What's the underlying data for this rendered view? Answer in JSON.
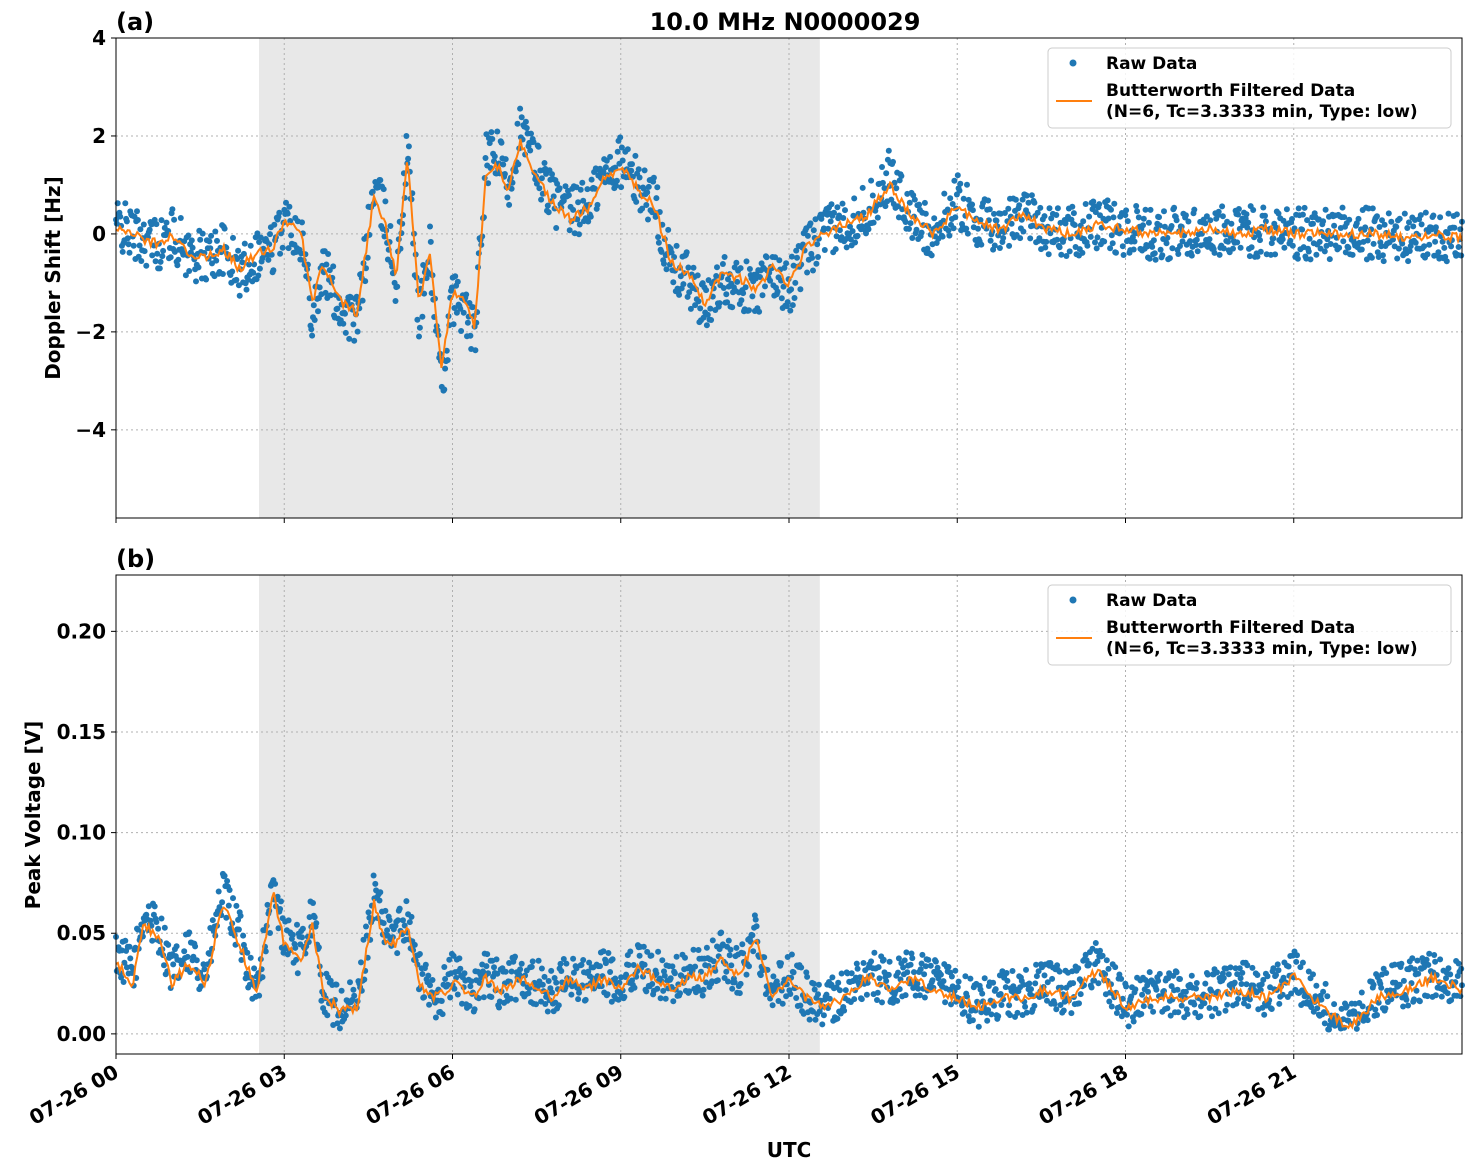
{
  "chart_data": [
    {
      "type": "scatter",
      "panel_label": "(a)",
      "title": "10.0 MHz N0000029",
      "xlabel": "",
      "ylabel": "Doppler Shift [Hz]",
      "xlim_hours": [
        0,
        24
      ],
      "ylim": [
        -5.8,
        4.0
      ],
      "yticks": [
        4,
        2,
        0,
        -2,
        -4
      ],
      "ytick_labels": [
        "4",
        "2",
        "0",
        "−2",
        "−4"
      ],
      "shaded_span_hours": [
        2.55,
        12.55
      ],
      "grid": true,
      "legend_position": "top-right",
      "legend": [
        "Raw Data",
        "Butterworth Filtered Data",
        "(N=6, Tc=3.3333 min, Type: low)"
      ],
      "series": [
        {
          "name": "Raw Data",
          "color": "#1f77b4",
          "x_hours": [
            0,
            0.3,
            0.5,
            0.8,
            1.0,
            1.3,
            1.6,
            1.9,
            2.2,
            2.5,
            2.8,
            3.0,
            3.3,
            3.5,
            3.7,
            4.0,
            4.3,
            4.6,
            4.8,
            5.0,
            5.2,
            5.4,
            5.6,
            5.8,
            6.0,
            6.2,
            6.4,
            6.6,
            6.8,
            7.0,
            7.2,
            7.5,
            7.8,
            8.1,
            8.4,
            8.7,
            9.0,
            9.3,
            9.6,
            9.9,
            10.2,
            10.5,
            10.8,
            11.1,
            11.4,
            11.7,
            12.0,
            12.3,
            12.6,
            13.0,
            13.4,
            13.8,
            14.2,
            14.6,
            15.0,
            15.4,
            15.8,
            16.2,
            16.6,
            17.0,
            17.5,
            18.0,
            18.5,
            19.0,
            19.5,
            20.0,
            20.5,
            21.0,
            21.5,
            22.0,
            22.5,
            23.0,
            23.5,
            24.0
          ],
          "y_hz": [
            0.2,
            0.0,
            -0.1,
            -0.2,
            0.0,
            -0.4,
            -0.5,
            -0.3,
            -0.8,
            -0.4,
            -0.3,
            0.3,
            0.0,
            -1.6,
            -0.7,
            -1.5,
            -1.8,
            1.0,
            0.3,
            -1.0,
            1.8,
            -1.7,
            -0.3,
            -3.2,
            -1.3,
            -1.5,
            -2.1,
            1.5,
            1.6,
            1.0,
            2.1,
            1.4,
            0.7,
            0.4,
            0.6,
            1.2,
            1.5,
            1.0,
            0.7,
            -0.7,
            -0.9,
            -1.6,
            -0.9,
            -1.0,
            -1.2,
            -0.8,
            -1.1,
            -0.4,
            0.0,
            0.2,
            0.5,
            1.2,
            0.3,
            0.0,
            0.7,
            0.2,
            0.1,
            0.5,
            0.1,
            0.0,
            0.2,
            0.1,
            0.0,
            0.0,
            0.1,
            0.0,
            0.1,
            0.0,
            0.0,
            0.0,
            0.0,
            -0.1,
            0.0,
            -0.1
          ]
        },
        {
          "name": "Butterworth Filtered Data",
          "color": "#ff7f0e",
          "x_hours": [
            0,
            0.3,
            0.5,
            0.8,
            1.0,
            1.3,
            1.6,
            1.9,
            2.2,
            2.5,
            2.8,
            3.0,
            3.3,
            3.5,
            3.7,
            4.0,
            4.3,
            4.6,
            4.8,
            5.0,
            5.2,
            5.4,
            5.6,
            5.8,
            6.0,
            6.2,
            6.4,
            6.6,
            6.8,
            7.0,
            7.2,
            7.5,
            7.8,
            8.1,
            8.4,
            8.7,
            9.0,
            9.3,
            9.6,
            9.9,
            10.2,
            10.5,
            10.8,
            11.1,
            11.4,
            11.7,
            12.0,
            12.3,
            12.6,
            13.0,
            13.4,
            13.8,
            14.2,
            14.6,
            15.0,
            15.4,
            15.8,
            16.2,
            16.6,
            17.0,
            17.5,
            18.0,
            18.5,
            19.0,
            19.5,
            20.0,
            20.5,
            21.0,
            21.5,
            22.0,
            22.5,
            23.0,
            23.5,
            24.0
          ],
          "y_hz": [
            0.15,
            0.0,
            -0.15,
            -0.2,
            0.0,
            -0.4,
            -0.5,
            -0.3,
            -0.7,
            -0.4,
            -0.3,
            0.3,
            0.0,
            -1.4,
            -0.6,
            -1.4,
            -1.6,
            0.8,
            0.2,
            -0.9,
            1.6,
            -1.4,
            -0.3,
            -2.8,
            -1.2,
            -1.4,
            -1.9,
            1.3,
            1.4,
            0.9,
            1.9,
            1.2,
            0.6,
            0.3,
            0.5,
            1.1,
            1.4,
            0.9,
            0.6,
            -0.6,
            -0.8,
            -1.4,
            -0.8,
            -0.9,
            -1.1,
            -0.7,
            -1.0,
            -0.3,
            0.0,
            0.2,
            0.4,
            1.0,
            0.3,
            0.0,
            0.6,
            0.2,
            0.1,
            0.4,
            0.1,
            0.0,
            0.2,
            0.1,
            0.0,
            0.0,
            0.1,
            0.0,
            0.1,
            0.0,
            0.0,
            0.0,
            0.0,
            -0.1,
            0.0,
            -0.1
          ]
        }
      ]
    },
    {
      "type": "scatter",
      "panel_label": "(b)",
      "title": "",
      "xlabel": "UTC",
      "ylabel": "Peak Voltage [V]",
      "xlim_hours": [
        0,
        24
      ],
      "ylim": [
        -0.01,
        0.228
      ],
      "yticks": [
        0.2,
        0.15,
        0.1,
        0.05,
        0.0
      ],
      "ytick_labels": [
        "0.20",
        "0.15",
        "0.10",
        "0.05",
        "0.00"
      ],
      "xtick_labels": [
        "07-26 00",
        "07-26 03",
        "07-26 06",
        "07-26 09",
        "07-26 12",
        "07-26 15",
        "07-26 18",
        "07-26 21"
      ],
      "xtick_hours": [
        0,
        3,
        6,
        9,
        12,
        15,
        18,
        21
      ],
      "shaded_span_hours": [
        2.55,
        12.55
      ],
      "grid": true,
      "legend_position": "top-right",
      "legend": [
        "Raw Data",
        "Butterworth Filtered Data",
        "(N=6, Tc=3.3333 min, Type: low)"
      ],
      "series": [
        {
          "name": "Raw Data",
          "color": "#1f77b4",
          "x_hours": [
            0,
            0.3,
            0.5,
            0.8,
            1.0,
            1.3,
            1.6,
            1.9,
            2.2,
            2.5,
            2.8,
            3.0,
            3.3,
            3.5,
            3.7,
            4.0,
            4.3,
            4.6,
            4.8,
            5.0,
            5.2,
            5.4,
            5.6,
            5.8,
            6.0,
            6.2,
            6.4,
            6.6,
            6.8,
            7.0,
            7.2,
            7.5,
            7.8,
            8.1,
            8.4,
            8.7,
            9.0,
            9.3,
            9.6,
            9.9,
            10.2,
            10.5,
            10.8,
            11.1,
            11.4,
            11.7,
            12.0,
            12.3,
            12.6,
            13.0,
            13.4,
            13.8,
            14.2,
            14.6,
            15.0,
            15.4,
            15.8,
            16.2,
            16.6,
            17.0,
            17.5,
            18.0,
            18.5,
            19.0,
            19.5,
            20.0,
            20.5,
            21.0,
            21.5,
            22.0,
            22.5,
            23.0,
            23.5,
            24.0
          ],
          "y_volts": [
            0.04,
            0.03,
            0.06,
            0.05,
            0.03,
            0.04,
            0.03,
            0.07,
            0.05,
            0.02,
            0.07,
            0.05,
            0.04,
            0.06,
            0.02,
            0.012,
            0.015,
            0.07,
            0.05,
            0.05,
            0.06,
            0.03,
            0.02,
            0.02,
            0.03,
            0.025,
            0.02,
            0.03,
            0.025,
            0.025,
            0.03,
            0.025,
            0.02,
            0.03,
            0.025,
            0.03,
            0.025,
            0.035,
            0.03,
            0.025,
            0.03,
            0.03,
            0.04,
            0.03,
            0.05,
            0.02,
            0.03,
            0.02,
            0.015,
            0.02,
            0.03,
            0.025,
            0.03,
            0.025,
            0.02,
            0.015,
            0.02,
            0.02,
            0.025,
            0.02,
            0.035,
            0.015,
            0.02,
            0.02,
            0.02,
            0.025,
            0.02,
            0.03,
            0.015,
            0.002,
            0.02,
            0.025,
            0.03,
            0.025
          ]
        },
        {
          "name": "Butterworth Filtered Data",
          "color": "#ff7f0e",
          "x_hours": [
            0,
            0.3,
            0.5,
            0.8,
            1.0,
            1.3,
            1.6,
            1.9,
            2.2,
            2.5,
            2.8,
            3.0,
            3.3,
            3.5,
            3.7,
            4.0,
            4.3,
            4.6,
            4.8,
            5.0,
            5.2,
            5.4,
            5.6,
            5.8,
            6.0,
            6.2,
            6.4,
            6.6,
            6.8,
            7.0,
            7.2,
            7.5,
            7.8,
            8.1,
            8.4,
            8.7,
            9.0,
            9.3,
            9.6,
            9.9,
            10.2,
            10.5,
            10.8,
            11.1,
            11.4,
            11.7,
            12.0,
            12.3,
            12.6,
            13.0,
            13.4,
            13.8,
            14.2,
            14.6,
            15.0,
            15.4,
            15.8,
            16.2,
            16.6,
            17.0,
            17.5,
            18.0,
            18.5,
            19.0,
            19.5,
            20.0,
            20.5,
            21.0,
            21.5,
            22.0,
            22.5,
            23.0,
            23.5,
            24.0
          ],
          "y_volts": [
            0.035,
            0.025,
            0.055,
            0.045,
            0.025,
            0.035,
            0.025,
            0.065,
            0.045,
            0.02,
            0.07,
            0.045,
            0.035,
            0.055,
            0.02,
            0.011,
            0.013,
            0.065,
            0.045,
            0.045,
            0.055,
            0.025,
            0.018,
            0.02,
            0.025,
            0.022,
            0.018,
            0.028,
            0.022,
            0.022,
            0.028,
            0.022,
            0.018,
            0.028,
            0.022,
            0.028,
            0.022,
            0.032,
            0.028,
            0.022,
            0.028,
            0.028,
            0.038,
            0.028,
            0.048,
            0.018,
            0.028,
            0.018,
            0.013,
            0.018,
            0.028,
            0.022,
            0.028,
            0.022,
            0.018,
            0.013,
            0.018,
            0.018,
            0.022,
            0.018,
            0.032,
            0.013,
            0.018,
            0.018,
            0.018,
            0.022,
            0.018,
            0.028,
            0.013,
            0.003,
            0.018,
            0.022,
            0.028,
            0.022
          ]
        }
      ]
    }
  ],
  "colors": {
    "raw": "#1f77b4",
    "filtered": "#ff7f0e",
    "shade": "#e8e8e8",
    "grid": "#b0b0b0"
  }
}
